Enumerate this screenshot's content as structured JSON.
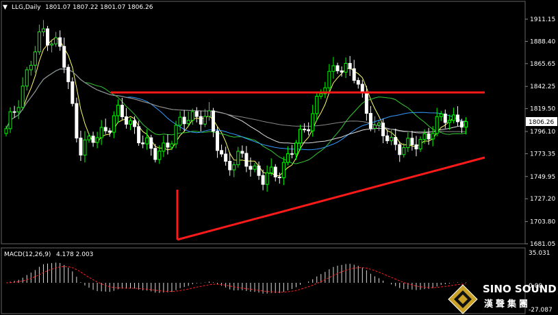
{
  "header": {
    "symbol_arrow": "▼",
    "symbol": "LLG,Daily",
    "ohlc": "1801.07 1807.22 1801.07 1806.26"
  },
  "price_axis": {
    "ticks": [
      "1911.15",
      "1888.40",
      "1865.65",
      "1842.25",
      "1819.50",
      "1796.10",
      "1773.35",
      "1749.95",
      "1727.20",
      "1703.80",
      "1681.05"
    ],
    "current_price_label": "1806.26"
  },
  "macd": {
    "label": "MACD(12,26,9)",
    "values": "4.178 2.003",
    "ticks": [
      "35.031",
      "0.00",
      "-27.087"
    ]
  },
  "logo": {
    "line1": "SINO SOUND",
    "line2": "漢聲集團"
  },
  "colors": {
    "background": "#000000",
    "bull_candle": "#00ff00",
    "bear_candle": "#ffffff",
    "trendline": "#ff1a1a",
    "ma_yellow": "#ffff66",
    "ma_green": "#33cc33",
    "ma_blue": "#3399ff",
    "ma_white": "#dddddd",
    "ma_gray": "#888888",
    "macd_signal": "#ff2020"
  },
  "chart_data": {
    "type": "candlestick",
    "title": "LLG,Daily",
    "ylim": [
      1681.05,
      1911.15
    ],
    "current_price": 1806.26,
    "trendlines": [
      {
        "name": "resistance",
        "points": [
          [
            0.22,
            1836
          ],
          [
            0.96,
            1836
          ]
        ]
      },
      {
        "name": "support",
        "points": [
          [
            0.35,
            1686
          ],
          [
            0.96,
            1768
          ]
        ]
      },
      {
        "name": "left-leg",
        "points": [
          [
            0.35,
            1686
          ],
          [
            0.35,
            1757
          ]
        ]
      }
    ],
    "key_closes": [
      1795,
      1848,
      1900,
      1880,
      1780,
      1790,
      1815,
      1800,
      1770,
      1790,
      1815,
      1808,
      1760,
      1770,
      1745,
      1760,
      1790,
      1830,
      1868,
      1850,
      1800,
      1785,
      1778,
      1796,
      1812,
      1806
    ]
  }
}
